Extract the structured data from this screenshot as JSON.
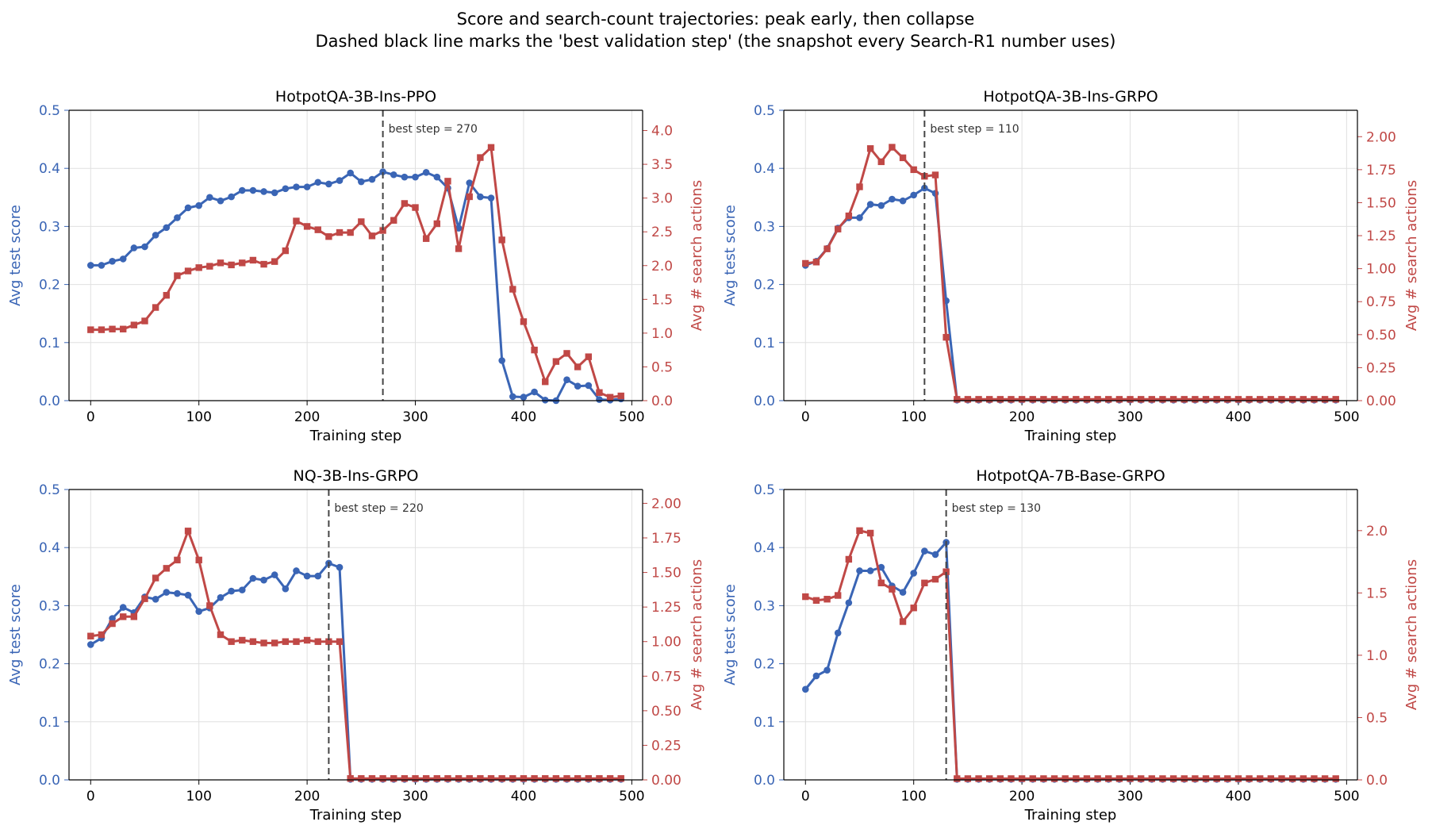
{
  "figure": {
    "title_line1": "Score and search-count trajectories: peak early, then collapse",
    "title_line2": "Dashed black line marks the 'best validation step' (the snapshot every Search-R1 number uses)"
  },
  "colors": {
    "score": "#3a65b5",
    "search": "#c04846",
    "best_line": "#444444",
    "grid": "#e0e0e0"
  },
  "chart_data": [
    {
      "type": "line",
      "title": "HotpotQA-3B-Ins-PPO",
      "xlabel": "Training step",
      "ylabel_left": "Avg test score",
      "ylabel_right": "Avg # search actions",
      "xlim": [
        -20,
        510
      ],
      "ylim_left": [
        0,
        0.5
      ],
      "ylim_right": [
        0,
        4.3
      ],
      "xticks": [
        "0",
        "100",
        "200",
        "300",
        "400",
        "500"
      ],
      "yticks_left": [
        "0.0",
        "0.1",
        "0.2",
        "0.3",
        "0.4",
        "0.5"
      ],
      "yticks_right": [
        "0.0",
        "0.5",
        "1.0",
        "1.5",
        "2.0",
        "2.5",
        "3.0",
        "3.5",
        "4.0"
      ],
      "grid": true,
      "best_step": 270,
      "best_label": "best step = 270",
      "score": {
        "x": [
          0,
          10,
          20,
          30,
          40,
          50,
          60,
          70,
          80,
          90,
          100,
          110,
          120,
          130,
          140,
          150,
          160,
          170,
          180,
          190,
          200,
          210,
          220,
          230,
          240,
          250,
          260,
          270,
          280,
          290,
          300,
          310,
          320,
          330,
          340,
          350,
          360,
          370,
          380,
          390,
          400,
          410,
          420,
          430,
          440,
          450,
          460,
          470,
          480,
          490
        ],
        "y": [
          0.233,
          0.233,
          0.24,
          0.244,
          0.263,
          0.265,
          0.285,
          0.298,
          0.315,
          0.332,
          0.336,
          0.35,
          0.344,
          0.351,
          0.362,
          0.362,
          0.36,
          0.358,
          0.365,
          0.368,
          0.368,
          0.376,
          0.373,
          0.379,
          0.392,
          0.377,
          0.381,
          0.394,
          0.389,
          0.385,
          0.385,
          0.393,
          0.385,
          0.366,
          0.297,
          0.375,
          0.351,
          0.349,
          0.069,
          0.007,
          0.006,
          0.015,
          0.001,
          0.0,
          0.036,
          0.025,
          0.026,
          0.002,
          0.001,
          0.003
        ]
      },
      "search": {
        "x": [
          0,
          10,
          20,
          30,
          40,
          50,
          60,
          70,
          80,
          90,
          100,
          110,
          120,
          130,
          140,
          150,
          160,
          170,
          180,
          190,
          200,
          210,
          220,
          230,
          240,
          250,
          260,
          270,
          280,
          290,
          300,
          310,
          320,
          330,
          340,
          350,
          360,
          370,
          380,
          390,
          400,
          410,
          420,
          430,
          440,
          450,
          460,
          470,
          480,
          490
        ],
        "y": [
          1.05,
          1.05,
          1.06,
          1.06,
          1.12,
          1.18,
          1.38,
          1.56,
          1.85,
          1.92,
          1.97,
          1.99,
          2.04,
          2.01,
          2.04,
          2.08,
          2.02,
          2.06,
          2.22,
          2.66,
          2.58,
          2.53,
          2.43,
          2.49,
          2.49,
          2.65,
          2.44,
          2.52,
          2.67,
          2.92,
          2.86,
          2.4,
          2.62,
          3.25,
          2.25,
          3.02,
          3.6,
          3.75,
          2.38,
          1.65,
          1.17,
          0.75,
          0.28,
          0.58,
          0.7,
          0.5,
          0.65,
          0.12,
          0.05,
          0.07
        ]
      }
    },
    {
      "type": "line",
      "title": "HotpotQA-3B-Ins-GRPO",
      "xlabel": "Training step",
      "ylabel_left": "Avg test score",
      "ylabel_right": "Avg # search actions",
      "xlim": [
        -20,
        510
      ],
      "ylim_left": [
        0,
        0.5
      ],
      "ylim_right": [
        0,
        2.2
      ],
      "xticks": [
        "0",
        "100",
        "200",
        "300",
        "400",
        "500"
      ],
      "yticks_left": [
        "0.0",
        "0.1",
        "0.2",
        "0.3",
        "0.4",
        "0.5"
      ],
      "yticks_right": [
        "0.00",
        "0.25",
        "0.50",
        "0.75",
        "1.00",
        "1.25",
        "1.50",
        "1.75",
        "2.00"
      ],
      "grid": true,
      "best_step": 110,
      "best_label": "best step = 110",
      "score": {
        "x": [
          0,
          10,
          20,
          30,
          40,
          50,
          60,
          70,
          80,
          90,
          100,
          110,
          120,
          130,
          140,
          150,
          160,
          170,
          180,
          190,
          200,
          210,
          220,
          230,
          240,
          250,
          260,
          270,
          280,
          290,
          300,
          310,
          320,
          330,
          340,
          350,
          360,
          370,
          380,
          390,
          400,
          410,
          420,
          430,
          440,
          450,
          460,
          470,
          480,
          490
        ],
        "y": [
          0.233,
          0.24,
          0.262,
          0.297,
          0.315,
          0.315,
          0.338,
          0.336,
          0.347,
          0.344,
          0.354,
          0.366,
          0.357,
          0.172,
          0.001,
          0.001,
          0.001,
          0.001,
          0.001,
          0.001,
          0.001,
          0.001,
          0.001,
          0.001,
          0.001,
          0.001,
          0.001,
          0.001,
          0.001,
          0.001,
          0.001,
          0.001,
          0.001,
          0.001,
          0.001,
          0.001,
          0.001,
          0.001,
          0.001,
          0.001,
          0.001,
          0.001,
          0.001,
          0.001,
          0.001,
          0.001,
          0.001,
          0.001,
          0.001,
          0.001
        ]
      },
      "search": {
        "x": [
          0,
          10,
          20,
          30,
          40,
          50,
          60,
          70,
          80,
          90,
          100,
          110,
          120,
          130,
          140,
          150,
          160,
          170,
          180,
          190,
          200,
          210,
          220,
          230,
          240,
          250,
          260,
          270,
          280,
          290,
          300,
          310,
          320,
          330,
          340,
          350,
          360,
          370,
          380,
          390,
          400,
          410,
          420,
          430,
          440,
          450,
          460,
          470,
          480,
          490
        ],
        "y": [
          1.04,
          1.05,
          1.15,
          1.3,
          1.4,
          1.62,
          1.91,
          1.81,
          1.92,
          1.84,
          1.75,
          1.7,
          1.71,
          0.48,
          0.01,
          0.01,
          0.01,
          0.01,
          0.01,
          0.01,
          0.01,
          0.01,
          0.01,
          0.01,
          0.01,
          0.01,
          0.01,
          0.01,
          0.01,
          0.01,
          0.01,
          0.01,
          0.01,
          0.01,
          0.01,
          0.01,
          0.01,
          0.01,
          0.01,
          0.01,
          0.01,
          0.01,
          0.01,
          0.01,
          0.01,
          0.01,
          0.01,
          0.01,
          0.01,
          0.01
        ]
      }
    },
    {
      "type": "line",
      "title": "NQ-3B-Ins-GRPO",
      "xlabel": "Training step",
      "ylabel_left": "Avg test score",
      "ylabel_right": "Avg # search actions",
      "xlim": [
        -20,
        510
      ],
      "ylim_left": [
        0,
        0.5
      ],
      "ylim_right": [
        0,
        2.1
      ],
      "xticks": [
        "0",
        "100",
        "200",
        "300",
        "400",
        "500"
      ],
      "yticks_left": [
        "0.0",
        "0.1",
        "0.2",
        "0.3",
        "0.4",
        "0.5"
      ],
      "yticks_right": [
        "0.00",
        "0.25",
        "0.50",
        "0.75",
        "1.00",
        "1.25",
        "1.50",
        "1.75",
        "2.00"
      ],
      "grid": true,
      "best_step": 220,
      "best_label": "best step = 220",
      "score": {
        "x": [
          0,
          10,
          20,
          30,
          40,
          50,
          60,
          70,
          80,
          90,
          100,
          110,
          120,
          130,
          140,
          150,
          160,
          170,
          180,
          190,
          200,
          210,
          220,
          230,
          240,
          250,
          260,
          270,
          280,
          290,
          300,
          310,
          320,
          330,
          340,
          350,
          360,
          370,
          380,
          390,
          400,
          410,
          420,
          430,
          440,
          450,
          460,
          470,
          480,
          490
        ],
        "y": [
          0.233,
          0.244,
          0.278,
          0.297,
          0.288,
          0.315,
          0.311,
          0.323,
          0.321,
          0.318,
          0.29,
          0.296,
          0.314,
          0.325,
          0.327,
          0.347,
          0.344,
          0.353,
          0.329,
          0.36,
          0.351,
          0.351,
          0.373,
          0.366,
          0.001,
          0.001,
          0.001,
          0.001,
          0.001,
          0.001,
          0.001,
          0.001,
          0.001,
          0.001,
          0.001,
          0.001,
          0.001,
          0.001,
          0.001,
          0.001,
          0.001,
          0.001,
          0.001,
          0.001,
          0.001,
          0.001,
          0.001,
          0.001,
          0.001,
          0.001
        ]
      },
      "search": {
        "x": [
          0,
          10,
          20,
          30,
          40,
          50,
          60,
          70,
          80,
          90,
          100,
          110,
          120,
          130,
          140,
          150,
          160,
          170,
          180,
          190,
          200,
          210,
          220,
          230,
          240,
          250,
          260,
          270,
          280,
          290,
          300,
          310,
          320,
          330,
          340,
          350,
          360,
          370,
          380,
          390,
          400,
          410,
          420,
          430,
          440,
          450,
          460,
          470,
          480,
          490
        ],
        "y": [
          1.04,
          1.05,
          1.13,
          1.18,
          1.18,
          1.31,
          1.46,
          1.53,
          1.59,
          1.8,
          1.59,
          1.26,
          1.05,
          1.0,
          1.01,
          1.0,
          0.99,
          0.99,
          1.0,
          1.0,
          1.01,
          1.0,
          1.0,
          1.0,
          0.01,
          0.01,
          0.01,
          0.01,
          0.01,
          0.01,
          0.01,
          0.01,
          0.01,
          0.01,
          0.01,
          0.01,
          0.01,
          0.01,
          0.01,
          0.01,
          0.01,
          0.01,
          0.01,
          0.01,
          0.01,
          0.01,
          0.01,
          0.01,
          0.01,
          0.01
        ]
      }
    },
    {
      "type": "line",
      "title": "HotpotQA-7B-Base-GRPO",
      "xlabel": "Training step",
      "ylabel_left": "Avg test score",
      "ylabel_right": "Avg # search actions",
      "xlim": [
        -20,
        510
      ],
      "ylim_left": [
        0,
        0.5
      ],
      "ylim_right": [
        0,
        2.33
      ],
      "xticks": [
        "0",
        "100",
        "200",
        "300",
        "400",
        "500"
      ],
      "yticks_left": [
        "0.0",
        "0.1",
        "0.2",
        "0.3",
        "0.4",
        "0.5"
      ],
      "yticks_right": [
        "0.0",
        "0.5",
        "1.0",
        "1.5",
        "2.0"
      ],
      "grid": true,
      "best_step": 130,
      "best_label": "best step = 130",
      "score": {
        "x": [
          0,
          10,
          20,
          30,
          40,
          50,
          60,
          70,
          80,
          90,
          100,
          110,
          120,
          130,
          140,
          150,
          160,
          170,
          180,
          190,
          200,
          210,
          220,
          230,
          240,
          250,
          260,
          270,
          280,
          290,
          300,
          310,
          320,
          330,
          340,
          350,
          360,
          370,
          380,
          390,
          400,
          410,
          420,
          430,
          440,
          450,
          460,
          470,
          480,
          490
        ],
        "y": [
          0.156,
          0.179,
          0.189,
          0.253,
          0.305,
          0.36,
          0.36,
          0.366,
          0.334,
          0.323,
          0.356,
          0.394,
          0.388,
          0.409,
          0.001,
          0.001,
          0.001,
          0.001,
          0.001,
          0.001,
          0.001,
          0.001,
          0.001,
          0.001,
          0.001,
          0.001,
          0.001,
          0.001,
          0.001,
          0.001,
          0.001,
          0.001,
          0.001,
          0.001,
          0.001,
          0.001,
          0.001,
          0.001,
          0.001,
          0.001,
          0.001,
          0.001,
          0.001,
          0.001,
          0.001,
          0.001,
          0.001,
          0.001,
          0.001,
          0.001
        ]
      },
      "search": {
        "x": [
          0,
          10,
          20,
          30,
          40,
          50,
          60,
          70,
          80,
          90,
          100,
          110,
          120,
          130,
          140,
          150,
          160,
          170,
          180,
          190,
          200,
          210,
          220,
          230,
          240,
          250,
          260,
          270,
          280,
          290,
          300,
          310,
          320,
          330,
          340,
          350,
          360,
          370,
          380,
          390,
          400,
          410,
          420,
          430,
          440,
          450,
          460,
          470,
          480,
          490
        ],
        "y": [
          1.47,
          1.44,
          1.45,
          1.48,
          1.77,
          2.0,
          1.98,
          1.58,
          1.53,
          1.27,
          1.38,
          1.58,
          1.61,
          1.67,
          0.01,
          0.01,
          0.01,
          0.01,
          0.01,
          0.01,
          0.01,
          0.01,
          0.01,
          0.01,
          0.01,
          0.01,
          0.01,
          0.01,
          0.01,
          0.01,
          0.01,
          0.01,
          0.01,
          0.01,
          0.01,
          0.01,
          0.01,
          0.01,
          0.01,
          0.01,
          0.01,
          0.01,
          0.01,
          0.01,
          0.01,
          0.01,
          0.01,
          0.01,
          0.01,
          0.01
        ]
      }
    }
  ]
}
